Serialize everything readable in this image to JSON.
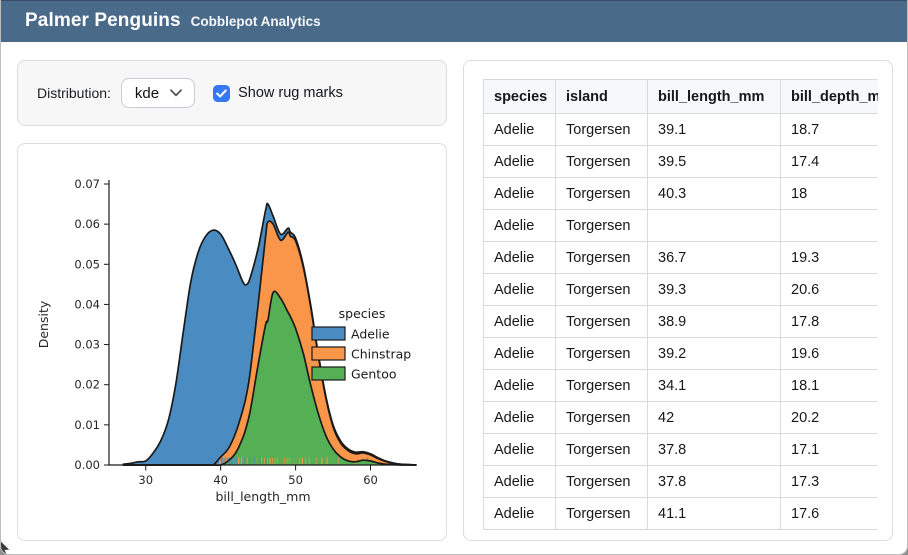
{
  "window": {
    "title": "Palmer Penguins",
    "subtitle": "Cobblepot Analytics"
  },
  "colors": {
    "header_bg": "#4A6A8A",
    "accent": "#3478F6",
    "card_border": "#DBDDE0",
    "controls_bg": "#F7F7F8",
    "table_border": "#D6D9DD",
    "table_header_bg": "#F7F8F9",
    "chart_outline": "#1A1A1A",
    "chart_text": "#262626"
  },
  "controls": {
    "distribution_label": "Distribution:",
    "distribution_value": "kde",
    "rug_label": "Show rug marks",
    "rug_checked": true
  },
  "table": {
    "columns": [
      "species",
      "island",
      "bill_length_mm",
      "bill_depth_mm"
    ],
    "rows": [
      [
        "Adelie",
        "Torgersen",
        "39.1",
        "18.7"
      ],
      [
        "Adelie",
        "Torgersen",
        "39.5",
        "17.4"
      ],
      [
        "Adelie",
        "Torgersen",
        "40.3",
        "18"
      ],
      [
        "Adelie",
        "Torgersen",
        "",
        ""
      ],
      [
        "Adelie",
        "Torgersen",
        "36.7",
        "19.3"
      ],
      [
        "Adelie",
        "Torgersen",
        "39.3",
        "20.6"
      ],
      [
        "Adelie",
        "Torgersen",
        "38.9",
        "17.8"
      ],
      [
        "Adelie",
        "Torgersen",
        "39.2",
        "19.6"
      ],
      [
        "Adelie",
        "Torgersen",
        "34.1",
        "18.1"
      ],
      [
        "Adelie",
        "Torgersen",
        "42",
        "20.2"
      ],
      [
        "Adelie",
        "Torgersen",
        "37.8",
        "17.1"
      ],
      [
        "Adelie",
        "Torgersen",
        "37.8",
        "17.3"
      ],
      [
        "Adelie",
        "Torgersen",
        "41.1",
        "17.6"
      ]
    ]
  },
  "chart_data": {
    "type": "area",
    "subtype": "stacked_kde",
    "xlabel": "bill_length_mm",
    "ylabel": "Density",
    "xlim": [
      25.1,
      66.2
    ],
    "ylim": [
      0,
      0.07
    ],
    "x_ticks": [
      30,
      40,
      50,
      60
    ],
    "y_ticks": [
      0,
      0.01,
      0.02,
      0.03,
      0.04,
      0.05,
      0.06,
      0.07
    ],
    "grid": false,
    "legend": {
      "title": "species",
      "position": "center-right",
      "frame": false
    },
    "stack_order": [
      "Gentoo",
      "Chinstrap",
      "Adelie"
    ],
    "x": [
      27,
      28,
      29,
      30,
      31,
      32,
      33,
      34,
      35,
      36,
      37,
      38,
      39,
      40,
      41,
      42,
      43,
      43.5,
      44,
      45,
      46,
      46.3,
      47,
      48,
      49,
      49.3,
      50,
      51,
      52,
      53,
      54,
      55,
      56,
      57,
      58,
      59,
      60,
      61,
      62,
      63,
      64,
      65,
      66
    ],
    "series": [
      {
        "name": "Adelie",
        "color": "#4A8CC1",
        "values": [
          0.0002,
          0.0004,
          0.0008,
          0.001,
          0.003,
          0.006,
          0.011,
          0.02,
          0.033,
          0.0455,
          0.053,
          0.057,
          0.0585,
          0.0555,
          0.05,
          0.042,
          0.0315,
          0.027,
          0.023,
          0.014,
          0.0065,
          0.0045,
          0.002,
          0.0015,
          0.001,
          0.001,
          0.0007,
          0.0005,
          0.0005,
          0.0005,
          0.0005,
          0.0005,
          0.0005,
          0.0004,
          0.0004,
          0.0003,
          0.0003,
          0.0002,
          0.0001,
          0.0001,
          0,
          0,
          0
        ]
      },
      {
        "name": "Chinstrap",
        "color": "#FA964A",
        "values": [
          0,
          0,
          0,
          0,
          0,
          0,
          0,
          0,
          0,
          0,
          0,
          0,
          0,
          0.002,
          0.003,
          0.005,
          0.007,
          0.008,
          0.01,
          0.015,
          0.022,
          0.0245,
          0.017,
          0.0145,
          0.02,
          0.02,
          0.0218,
          0.0215,
          0.0195,
          0.0145,
          0.0095,
          0.0055,
          0.0035,
          0.0026,
          0.002,
          0.0018,
          0.0015,
          0.0011,
          0.0007,
          0.0003,
          0.0002,
          0.0001,
          0
        ]
      },
      {
        "name": "Gentoo",
        "color": "#55AF55",
        "values": [
          0,
          0,
          0,
          0,
          0,
          0,
          0,
          0,
          0,
          0,
          0,
          0,
          0,
          0,
          0.001,
          0.003,
          0.007,
          0.01,
          0.014,
          0.025,
          0.035,
          0.036,
          0.043,
          0.0415,
          0.038,
          0.037,
          0.034,
          0.028,
          0.02,
          0.013,
          0.0075,
          0.004,
          0.002,
          0.001,
          0.0008,
          0.0012,
          0.001,
          0.0005,
          0.0002,
          0.0001,
          0,
          0,
          0
        ]
      }
    ],
    "rug": {
      "show": true,
      "Adelie": [
        32.1,
        33.1,
        33.5,
        34.1,
        34.4,
        34.6,
        35.0,
        35.2,
        35.5,
        35.7,
        36.0,
        36.2,
        36.4,
        36.7,
        37.0,
        37.2,
        37.5,
        37.8,
        38.1,
        38.3,
        38.6,
        38.8,
        39.0,
        39.2,
        39.5,
        39.7,
        40.1,
        40.3,
        40.6,
        40.9,
        41.1,
        41.4,
        41.6,
        41.9,
        42.2,
        42.5,
        42.9,
        43.3,
        43.8,
        44.5,
        45.2,
        46.0
      ],
      "Chinstrap": [
        40.9,
        42.4,
        42.8,
        43.5,
        44.9,
        45.4,
        45.8,
        46.2,
        46.6,
        46.9,
        47.3,
        47.6,
        48.1,
        48.5,
        48.9,
        49.2,
        49.6,
        50.0,
        50.5,
        50.9,
        51.4,
        51.9,
        52.7,
        53.5,
        54.2,
        55.8,
        58.0
      ],
      "Gentoo": [
        40.9,
        41.7,
        42.6,
        43.4,
        43.8,
        44.4,
        44.9,
        45.3,
        45.7,
        46.1,
        46.4,
        46.8,
        47.1,
        47.4,
        47.7,
        48.1,
        48.4,
        48.7,
        49.0,
        49.3,
        49.6,
        50.0,
        50.4,
        50.7,
        51.1,
        51.5,
        52.0,
        52.6,
        53.2,
        54.0,
        55.0,
        55.9,
        59.6
      ]
    }
  }
}
